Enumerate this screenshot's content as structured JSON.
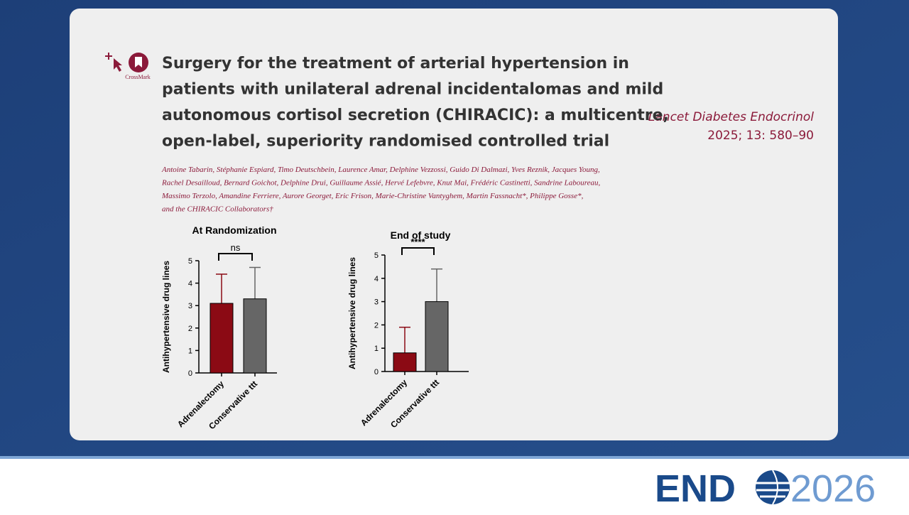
{
  "paper": {
    "crossmark": "CrossMark",
    "title_lines": [
      "Surgery for the treatment of arterial hypertension in",
      "patients with unilateral adrenal incidentalomas and mild",
      "autonomous cortisol secretion (CHIRACIC): a multicentre,",
      "open-label, superiority randomised controlled trial"
    ],
    "author_lines": [
      "Antoine Tabarin, Stéphanie Espiard, Timo Deutschbein, Laurence Amar, Delphine Vezzossi, Guido Di Dalmazi, Yves Reznik, Jacques Young,",
      "Rachel Desailloud, Bernard Goichot, Delphine Drui, Guillaume Assié, Hervé Lefebvre, Knut Mai, Frédéric Castinetti, Sandrine Laboureau,",
      "Massimo Terzolo, Amandine Ferriere, Aurore Georget, Eric Frison, Marie-Christine Vantyghem, Martin Fassnacht*, Philippe Gosse*,",
      "and the CHIRACIC Collaborators†"
    ],
    "journal": "Lancet Diabetes Endocrinol",
    "citation": "2025; 13: 580–90"
  },
  "chart_data": [
    {
      "type": "bar",
      "title": "At Randomization",
      "y_label": "Antihypertensive drug lines",
      "categories": [
        "Adrenalectomy",
        "Conservative ttt"
      ],
      "values": [
        3.1,
        3.3
      ],
      "errors": [
        1.3,
        1.4
      ],
      "colors": [
        "#8b0a14",
        "#666666"
      ],
      "ylim": [
        0,
        5
      ],
      "yticks": [
        0,
        1,
        2,
        3,
        4,
        5
      ],
      "annotation": "ns"
    },
    {
      "type": "bar",
      "title": "End of study",
      "y_label": "Antihypertensive drug lines",
      "categories": [
        "Adrenalectomy",
        "Conservative ttt"
      ],
      "values": [
        0.8,
        3.0
      ],
      "errors": [
        1.1,
        1.4
      ],
      "colors": [
        "#8b0a14",
        "#666666"
      ],
      "ylim": [
        0,
        5
      ],
      "yticks": [
        0,
        1,
        2,
        3,
        4,
        5
      ],
      "annotation": "****"
    }
  ],
  "logo": {
    "left": "END",
    "right": "2026"
  }
}
